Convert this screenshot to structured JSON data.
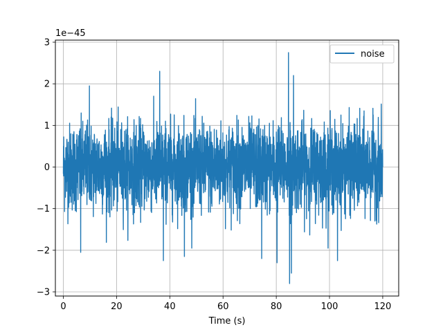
{
  "chart_data": {
    "type": "line",
    "title": "",
    "xlabel": "Time (s)",
    "ylabel": "",
    "y_offset_label": "1e−45",
    "y_scale": 1e-45,
    "xlim": [
      -3,
      126
    ],
    "ylim": [
      -3.1,
      3.05
    ],
    "x_ticks": [
      0,
      20,
      40,
      60,
      80,
      100,
      120
    ],
    "y_ticks": [
      -3,
      -2,
      -1,
      0,
      1,
      2,
      3
    ],
    "y_tick_labels": [
      "−3",
      "−2",
      "−1",
      "0",
      "1",
      "2",
      "3"
    ],
    "grid": true,
    "legend": {
      "position": "top-right",
      "entries": [
        "noise"
      ]
    },
    "series": [
      {
        "name": "noise",
        "color": "#1f77b4",
        "x_range": [
          0,
          120
        ],
        "rms": 0.52,
        "notable_peaks": [
          {
            "x": 6.5,
            "y": -2.05
          },
          {
            "x": 9.8,
            "y": 1.95
          },
          {
            "x": 36.2,
            "y": 2.3
          },
          {
            "x": 37.6,
            "y": -2.25
          },
          {
            "x": 45.5,
            "y": -2.15
          },
          {
            "x": 74.5,
            "y": -2.2
          },
          {
            "x": 80.3,
            "y": -2.3
          },
          {
            "x": 84.6,
            "y": 2.75
          },
          {
            "x": 85.0,
            "y": -2.8
          },
          {
            "x": 85.7,
            "y": -2.55
          },
          {
            "x": 86.5,
            "y": 2.2
          },
          {
            "x": 103.0,
            "y": -2.25
          }
        ]
      }
    ]
  }
}
